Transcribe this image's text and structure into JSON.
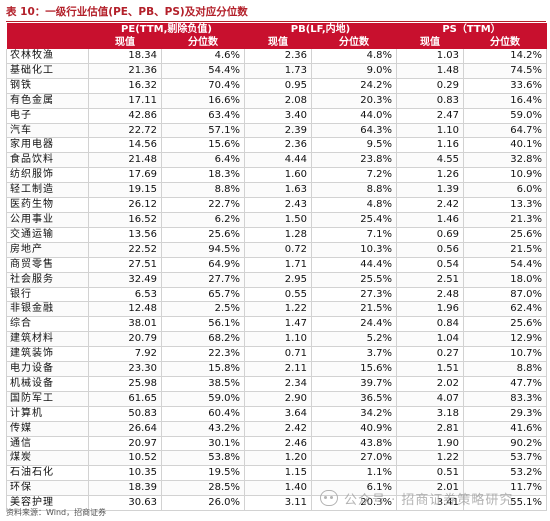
{
  "title": "表 10：一级行业估值(PE、PB、PS)及对应分位数",
  "headers": {
    "groups": [
      "PE(TTM,剔除负值)",
      "PB(LF,内地)",
      "PS（TTM）"
    ],
    "current": "现值",
    "percentile": "分位数"
  },
  "rows": [
    {
      "name": "农林牧渔",
      "pe": "18.34",
      "pe_pct": "4.6%",
      "pb": "2.36",
      "pb_pct": "4.8%",
      "ps": "1.03",
      "ps_pct": "14.2%"
    },
    {
      "name": "基础化工",
      "pe": "21.36",
      "pe_pct": "54.4%",
      "pb": "1.73",
      "pb_pct": "9.0%",
      "ps": "1.48",
      "ps_pct": "74.5%"
    },
    {
      "name": "钢铁",
      "pe": "16.32",
      "pe_pct": "70.4%",
      "pb": "0.95",
      "pb_pct": "24.2%",
      "ps": "0.29",
      "ps_pct": "33.6%"
    },
    {
      "name": "有色金属",
      "pe": "17.11",
      "pe_pct": "16.6%",
      "pb": "2.08",
      "pb_pct": "20.3%",
      "ps": "0.83",
      "ps_pct": "16.4%"
    },
    {
      "name": "电子",
      "pe": "42.86",
      "pe_pct": "63.4%",
      "pb": "3.40",
      "pb_pct": "44.0%",
      "ps": "2.47",
      "ps_pct": "59.0%"
    },
    {
      "name": "汽车",
      "pe": "22.72",
      "pe_pct": "57.1%",
      "pb": "2.39",
      "pb_pct": "64.3%",
      "ps": "1.10",
      "ps_pct": "64.7%"
    },
    {
      "name": "家用电器",
      "pe": "14.56",
      "pe_pct": "15.6%",
      "pb": "2.36",
      "pb_pct": "9.5%",
      "ps": "1.16",
      "ps_pct": "40.1%"
    },
    {
      "name": "食品饮料",
      "pe": "21.48",
      "pe_pct": "6.4%",
      "pb": "4.44",
      "pb_pct": "23.8%",
      "ps": "4.55",
      "ps_pct": "32.8%"
    },
    {
      "name": "纺织服饰",
      "pe": "17.69",
      "pe_pct": "18.3%",
      "pb": "1.60",
      "pb_pct": "7.2%",
      "ps": "1.26",
      "ps_pct": "10.9%"
    },
    {
      "name": "轻工制造",
      "pe": "19.15",
      "pe_pct": "8.8%",
      "pb": "1.63",
      "pb_pct": "8.8%",
      "ps": "1.39",
      "ps_pct": "6.0%"
    },
    {
      "name": "医药生物",
      "pe": "26.12",
      "pe_pct": "22.7%",
      "pb": "2.43",
      "pb_pct": "4.8%",
      "ps": "2.42",
      "ps_pct": "13.3%"
    },
    {
      "name": "公用事业",
      "pe": "16.52",
      "pe_pct": "6.2%",
      "pb": "1.50",
      "pb_pct": "25.4%",
      "ps": "1.46",
      "ps_pct": "21.3%"
    },
    {
      "name": "交通运输",
      "pe": "13.56",
      "pe_pct": "25.6%",
      "pb": "1.28",
      "pb_pct": "7.1%",
      "ps": "0.69",
      "ps_pct": "25.6%"
    },
    {
      "name": "房地产",
      "pe": "22.52",
      "pe_pct": "94.5%",
      "pb": "0.72",
      "pb_pct": "10.3%",
      "ps": "0.56",
      "ps_pct": "21.5%"
    },
    {
      "name": "商贸零售",
      "pe": "27.51",
      "pe_pct": "64.9%",
      "pb": "1.71",
      "pb_pct": "44.4%",
      "ps": "0.54",
      "ps_pct": "54.4%"
    },
    {
      "name": "社会服务",
      "pe": "32.49",
      "pe_pct": "27.7%",
      "pb": "2.95",
      "pb_pct": "25.5%",
      "ps": "2.51",
      "ps_pct": "18.0%"
    },
    {
      "name": "银行",
      "pe": "6.53",
      "pe_pct": "65.7%",
      "pb": "0.55",
      "pb_pct": "27.3%",
      "ps": "2.48",
      "ps_pct": "87.0%"
    },
    {
      "name": "非银金融",
      "pe": "12.48",
      "pe_pct": "2.5%",
      "pb": "1.22",
      "pb_pct": "21.5%",
      "ps": "1.96",
      "ps_pct": "62.4%"
    },
    {
      "name": "综合",
      "pe": "38.01",
      "pe_pct": "56.1%",
      "pb": "1.47",
      "pb_pct": "24.4%",
      "ps": "0.84",
      "ps_pct": "25.6%"
    },
    {
      "name": "建筑材料",
      "pe": "20.79",
      "pe_pct": "68.2%",
      "pb": "1.10",
      "pb_pct": "5.2%",
      "ps": "1.04",
      "ps_pct": "12.9%"
    },
    {
      "name": "建筑装饰",
      "pe": "7.92",
      "pe_pct": "22.3%",
      "pb": "0.71",
      "pb_pct": "3.7%",
      "ps": "0.27",
      "ps_pct": "10.7%"
    },
    {
      "name": "电力设备",
      "pe": "23.30",
      "pe_pct": "15.8%",
      "pb": "2.11",
      "pb_pct": "15.6%",
      "ps": "1.51",
      "ps_pct": "8.8%"
    },
    {
      "name": "机械设备",
      "pe": "25.98",
      "pe_pct": "38.5%",
      "pb": "2.34",
      "pb_pct": "39.7%",
      "ps": "2.02",
      "ps_pct": "47.7%"
    },
    {
      "name": "国防军工",
      "pe": "61.65",
      "pe_pct": "59.0%",
      "pb": "2.90",
      "pb_pct": "36.5%",
      "ps": "4.07",
      "ps_pct": "83.3%"
    },
    {
      "name": "计算机",
      "pe": "50.83",
      "pe_pct": "60.4%",
      "pb": "3.64",
      "pb_pct": "34.2%",
      "ps": "3.18",
      "ps_pct": "29.3%"
    },
    {
      "name": "传媒",
      "pe": "26.64",
      "pe_pct": "43.2%",
      "pb": "2.42",
      "pb_pct": "40.9%",
      "ps": "2.81",
      "ps_pct": "41.6%"
    },
    {
      "name": "通信",
      "pe": "20.97",
      "pe_pct": "30.1%",
      "pb": "2.46",
      "pb_pct": "43.8%",
      "ps": "1.90",
      "ps_pct": "90.2%"
    },
    {
      "name": "煤炭",
      "pe": "10.52",
      "pe_pct": "53.8%",
      "pb": "1.20",
      "pb_pct": "27.0%",
      "ps": "1.22",
      "ps_pct": "53.7%"
    },
    {
      "name": "石油石化",
      "pe": "10.35",
      "pe_pct": "19.5%",
      "pb": "1.15",
      "pb_pct": "1.1%",
      "ps": "0.51",
      "ps_pct": "53.2%"
    },
    {
      "name": "环保",
      "pe": "18.39",
      "pe_pct": "28.5%",
      "pb": "1.40",
      "pb_pct": "6.1%",
      "ps": "2.01",
      "ps_pct": "11.7%"
    },
    {
      "name": "美容护理",
      "pe": "30.63",
      "pe_pct": "26.0%",
      "pb": "3.11",
      "pb_pct": "20.3%",
      "ps": "3.41",
      "ps_pct": "55.1%"
    }
  ],
  "source": "资料来源：Wind，招商证券",
  "watermark": "公众号 · 招商证券策略研究"
}
